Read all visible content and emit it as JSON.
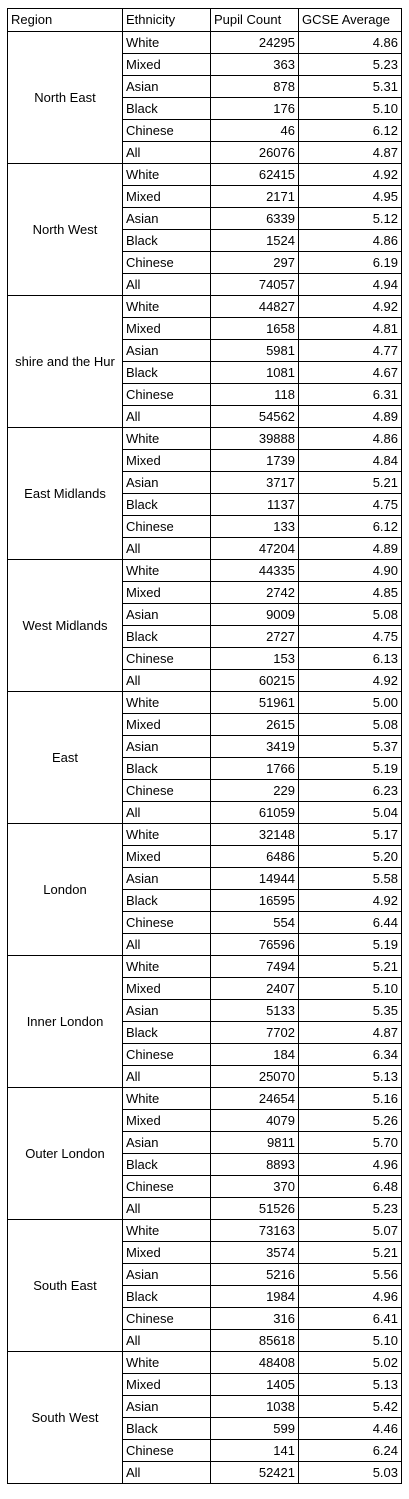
{
  "headers": [
    "Region",
    "Ethnicity",
    "Pupil Count",
    "GCSE Average"
  ],
  "regions": [
    {
      "name": "North East",
      "rows": [
        {
          "ethnicity": "White",
          "count": "24295",
          "avg": "4.86"
        },
        {
          "ethnicity": "Mixed",
          "count": "363",
          "avg": "5.23"
        },
        {
          "ethnicity": "Asian",
          "count": "878",
          "avg": "5.31"
        },
        {
          "ethnicity": "Black",
          "count": "176",
          "avg": "5.10"
        },
        {
          "ethnicity": "Chinese",
          "count": "46",
          "avg": "6.12"
        },
        {
          "ethnicity": "All",
          "count": "26076",
          "avg": "4.87"
        }
      ]
    },
    {
      "name": "North West",
      "rows": [
        {
          "ethnicity": "White",
          "count": "62415",
          "avg": "4.92"
        },
        {
          "ethnicity": "Mixed",
          "count": "2171",
          "avg": "4.95"
        },
        {
          "ethnicity": "Asian",
          "count": "6339",
          "avg": "5.12"
        },
        {
          "ethnicity": "Black",
          "count": "1524",
          "avg": "4.86"
        },
        {
          "ethnicity": "Chinese",
          "count": "297",
          "avg": "6.19"
        },
        {
          "ethnicity": "All",
          "count": "74057",
          "avg": "4.94"
        }
      ]
    },
    {
      "name": "shire and the Hur",
      "rows": [
        {
          "ethnicity": "White",
          "count": "44827",
          "avg": "4.92"
        },
        {
          "ethnicity": "Mixed",
          "count": "1658",
          "avg": "4.81"
        },
        {
          "ethnicity": "Asian",
          "count": "5981",
          "avg": "4.77"
        },
        {
          "ethnicity": "Black",
          "count": "1081",
          "avg": "4.67"
        },
        {
          "ethnicity": "Chinese",
          "count": "118",
          "avg": "6.31"
        },
        {
          "ethnicity": "All",
          "count": "54562",
          "avg": "4.89"
        }
      ]
    },
    {
      "name": "East Midlands",
      "rows": [
        {
          "ethnicity": "White",
          "count": "39888",
          "avg": "4.86"
        },
        {
          "ethnicity": "Mixed",
          "count": "1739",
          "avg": "4.84"
        },
        {
          "ethnicity": "Asian",
          "count": "3717",
          "avg": "5.21"
        },
        {
          "ethnicity": "Black",
          "count": "1137",
          "avg": "4.75"
        },
        {
          "ethnicity": "Chinese",
          "count": "133",
          "avg": "6.12"
        },
        {
          "ethnicity": "All",
          "count": "47204",
          "avg": "4.89"
        }
      ]
    },
    {
      "name": "West Midlands",
      "rows": [
        {
          "ethnicity": "White",
          "count": "44335",
          "avg": "4.90"
        },
        {
          "ethnicity": "Mixed",
          "count": "2742",
          "avg": "4.85"
        },
        {
          "ethnicity": "Asian",
          "count": "9009",
          "avg": "5.08"
        },
        {
          "ethnicity": "Black",
          "count": "2727",
          "avg": "4.75"
        },
        {
          "ethnicity": "Chinese",
          "count": "153",
          "avg": "6.13"
        },
        {
          "ethnicity": "All",
          "count": "60215",
          "avg": "4.92"
        }
      ]
    },
    {
      "name": "East",
      "rows": [
        {
          "ethnicity": "White",
          "count": "51961",
          "avg": "5.00"
        },
        {
          "ethnicity": "Mixed",
          "count": "2615",
          "avg": "5.08"
        },
        {
          "ethnicity": "Asian",
          "count": "3419",
          "avg": "5.37"
        },
        {
          "ethnicity": "Black",
          "count": "1766",
          "avg": "5.19"
        },
        {
          "ethnicity": "Chinese",
          "count": "229",
          "avg": "6.23"
        },
        {
          "ethnicity": "All",
          "count": "61059",
          "avg": "5.04"
        }
      ]
    },
    {
      "name": "London",
      "rows": [
        {
          "ethnicity": "White",
          "count": "32148",
          "avg": "5.17"
        },
        {
          "ethnicity": "Mixed",
          "count": "6486",
          "avg": "5.20"
        },
        {
          "ethnicity": "Asian",
          "count": "14944",
          "avg": "5.58"
        },
        {
          "ethnicity": "Black",
          "count": "16595",
          "avg": "4.92"
        },
        {
          "ethnicity": "Chinese",
          "count": "554",
          "avg": "6.44"
        },
        {
          "ethnicity": "All",
          "count": "76596",
          "avg": "5.19"
        }
      ]
    },
    {
      "name": "Inner London",
      "rows": [
        {
          "ethnicity": "White",
          "count": "7494",
          "avg": "5.21"
        },
        {
          "ethnicity": "Mixed",
          "count": "2407",
          "avg": "5.10"
        },
        {
          "ethnicity": "Asian",
          "count": "5133",
          "avg": "5.35"
        },
        {
          "ethnicity": "Black",
          "count": "7702",
          "avg": "4.87"
        },
        {
          "ethnicity": "Chinese",
          "count": "184",
          "avg": "6.34"
        },
        {
          "ethnicity": "All",
          "count": "25070",
          "avg": "5.13"
        }
      ]
    },
    {
      "name": "Outer London",
      "rows": [
        {
          "ethnicity": "White",
          "count": "24654",
          "avg": "5.16"
        },
        {
          "ethnicity": "Mixed",
          "count": "4079",
          "avg": "5.26"
        },
        {
          "ethnicity": "Asian",
          "count": "9811",
          "avg": "5.70"
        },
        {
          "ethnicity": "Black",
          "count": "8893",
          "avg": "4.96"
        },
        {
          "ethnicity": "Chinese",
          "count": "370",
          "avg": "6.48"
        },
        {
          "ethnicity": "All",
          "count": "51526",
          "avg": "5.23"
        }
      ]
    },
    {
      "name": "South East",
      "rows": [
        {
          "ethnicity": "White",
          "count": "73163",
          "avg": "5.07"
        },
        {
          "ethnicity": "Mixed",
          "count": "3574",
          "avg": "5.21"
        },
        {
          "ethnicity": "Asian",
          "count": "5216",
          "avg": "5.56"
        },
        {
          "ethnicity": "Black",
          "count": "1984",
          "avg": "4.96"
        },
        {
          "ethnicity": "Chinese",
          "count": "316",
          "avg": "6.41"
        },
        {
          "ethnicity": "All",
          "count": "85618",
          "avg": "5.10"
        }
      ]
    },
    {
      "name": "South West",
      "rows": [
        {
          "ethnicity": "White",
          "count": "48408",
          "avg": "5.02"
        },
        {
          "ethnicity": "Mixed",
          "count": "1405",
          "avg": "5.13"
        },
        {
          "ethnicity": "Asian",
          "count": "1038",
          "avg": "5.42"
        },
        {
          "ethnicity": "Black",
          "count": "599",
          "avg": "4.46"
        },
        {
          "ethnicity": "Chinese",
          "count": "141",
          "avg": "6.24"
        },
        {
          "ethnicity": "All",
          "count": "52421",
          "avg": "5.03"
        }
      ]
    }
  ]
}
